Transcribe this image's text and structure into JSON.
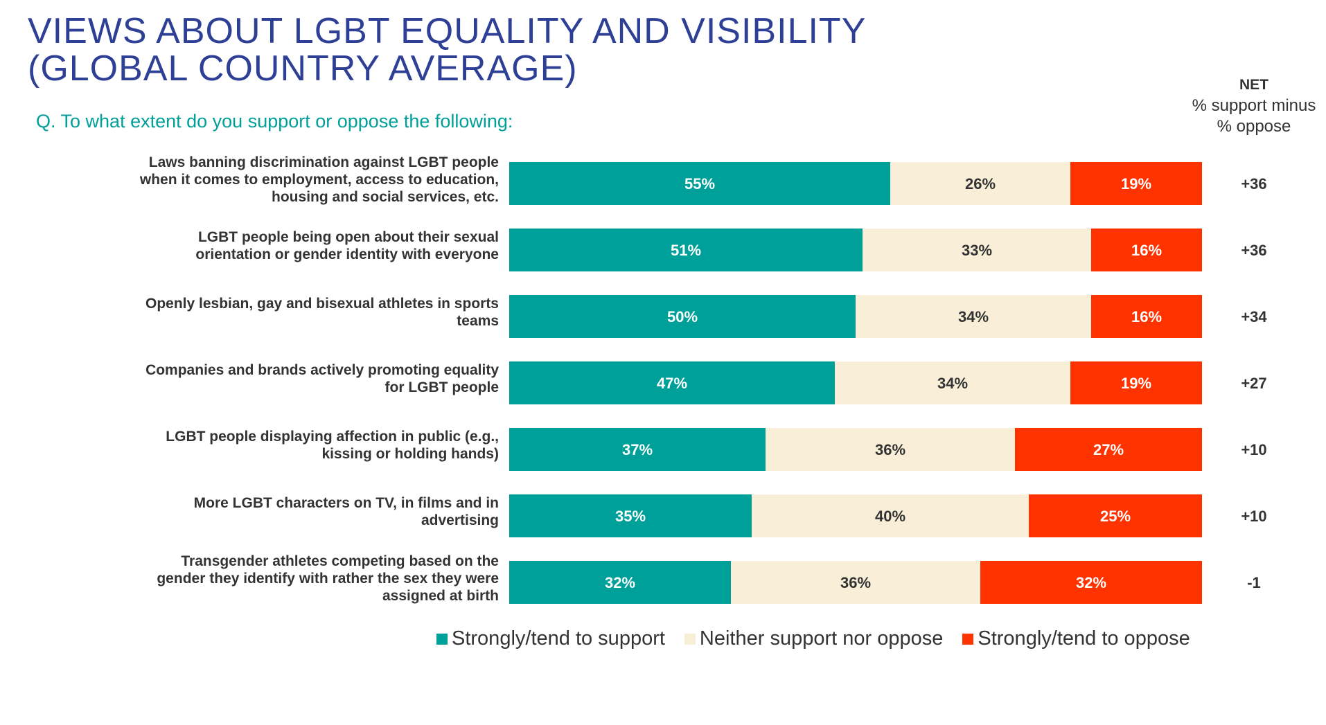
{
  "title_lines": [
    "VIEWS ABOUT LGBT EQUALITY AND VISIBILITY",
    "(GLOBAL COUNTRY AVERAGE)"
  ],
  "question": "Q. To what extent do you support or oppose the following:",
  "net_header": {
    "title": "NET",
    "line1": "% support minus",
    "line2": "% oppose"
  },
  "colors": {
    "support": "#00a09a",
    "neither": "#f9efd9",
    "oppose": "#ff3300",
    "title": "#2e3f96"
  },
  "chart_data": {
    "type": "bar",
    "orientation": "horizontal",
    "stacked": true,
    "categories": [
      [
        "Laws banning discrimination against LGBT people",
        "when it comes to employment, access to education,",
        "housing and social services, etc."
      ],
      [
        "LGBT people being open about their sexual",
        "orientation or gender identity with everyone"
      ],
      [
        "Openly lesbian, gay and bisexual athletes in sports",
        "teams"
      ],
      [
        "Companies and brands actively promoting equality",
        "for LGBT people"
      ],
      [
        "LGBT people displaying affection in public (e.g.,",
        "kissing or holding hands)"
      ],
      [
        "More LGBT characters on TV, in films and in",
        "advertising"
      ],
      [
        "Transgender athletes competing based on the",
        "gender they identify with rather the sex they were",
        "assigned at birth"
      ]
    ],
    "series": [
      {
        "name": "Strongly/tend to support",
        "values": [
          55,
          51,
          50,
          47,
          37,
          35,
          32
        ],
        "labels": [
          "55%",
          "51%",
          "50%",
          "47%",
          "37%",
          "35%",
          "32%"
        ]
      },
      {
        "name": "Neither support nor oppose",
        "values": [
          26,
          33,
          34,
          34,
          36,
          40,
          36
        ],
        "labels": [
          "26%",
          "33%",
          "34%",
          "34%",
          "36%",
          "40%",
          "36%"
        ]
      },
      {
        "name": "Strongly/tend to oppose",
        "values": [
          19,
          16,
          16,
          19,
          27,
          25,
          32
        ],
        "labels": [
          "19%",
          "16%",
          "16%",
          "19%",
          "27%",
          "25%",
          "32%"
        ]
      }
    ],
    "net": [
      "+36",
      "+36",
      "+34",
      "+27",
      "+10",
      "+10",
      "-1"
    ],
    "xlim": [
      0,
      100
    ],
    "legend_position": "bottom"
  }
}
